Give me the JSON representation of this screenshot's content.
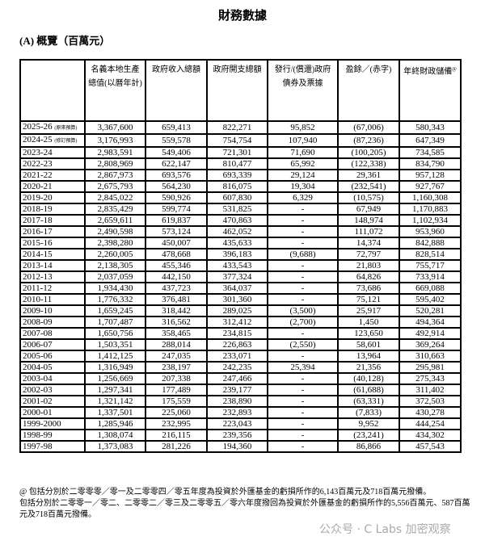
{
  "title": "財務數據",
  "section": "(A) 概覽（百萬元）",
  "headers": [
    "",
    "名義本地生產總值(以曆年計)",
    "政府收入總額",
    "政府開支總額",
    "發行/(償還)政府債券及票據",
    "盈餘／(赤字)",
    "年終財政儲備"
  ],
  "footnote_marker": "@",
  "rows": [
    {
      "year": "2025-26",
      "note": "(原來預算)",
      "v": [
        "3,367,600",
        "659,413",
        "822,271",
        "95,852",
        "(67,006)",
        "580,343"
      ]
    },
    {
      "year": "2024-25",
      "note": "(修訂預算)",
      "v": [
        "3,176,993",
        "559,578",
        "754,754",
        "107,940",
        "(87,236)",
        "647,349"
      ]
    },
    {
      "year": "2023-24",
      "v": [
        "2,983,591",
        "549,406",
        "721,301",
        "71,690",
        "(100,205)",
        "734,585"
      ]
    },
    {
      "year": "2022-23",
      "v": [
        "2,808,969",
        "622,147",
        "810,477",
        "65,992",
        "(122,338)",
        "834,790"
      ]
    },
    {
      "year": "2021-22",
      "v": [
        "2,867,973",
        "693,576",
        "693,339",
        "29,124",
        "29,361",
        "957,128"
      ]
    },
    {
      "year": "2020-21",
      "v": [
        "2,675,793",
        "564,230",
        "816,075",
        "19,304",
        "(232,541)",
        "927,767"
      ]
    },
    {
      "year": "2019-20",
      "v": [
        "2,845,022",
        "590,926",
        "607,830",
        "6,329",
        "(10,575)",
        "1,160,308"
      ]
    },
    {
      "year": "2018-19",
      "v": [
        "2,835,429",
        "599,774",
        "531,825",
        "-",
        "67,949",
        "1,170,883"
      ]
    },
    {
      "year": "2017-18",
      "v": [
        "2,659,611",
        "619,837",
        "470,863",
        "-",
        "148,974",
        "1,102,934"
      ]
    },
    {
      "year": "2016-17",
      "v": [
        "2,490,598",
        "573,124",
        "462,052",
        "-",
        "111,072",
        "953,960"
      ]
    },
    {
      "year": "2015-16",
      "v": [
        "2,398,280",
        "450,007",
        "435,633",
        "-",
        "14,374",
        "842,888"
      ]
    },
    {
      "year": "2014-15",
      "v": [
        "2,260,005",
        "478,668",
        "396,183",
        "(9,688)",
        "72,797",
        "828,514"
      ]
    },
    {
      "year": "2013-14",
      "v": [
        "2,138,305",
        "455,346",
        "433,543",
        "-",
        "21,803",
        "755,717"
      ]
    },
    {
      "year": "2012-13",
      "v": [
        "2,037,059",
        "442,150",
        "377,324",
        "-",
        "64,826",
        "733,914"
      ]
    },
    {
      "year": "2011-12",
      "v": [
        "1,934,430",
        "437,723",
        "364,037",
        "-",
        "73,686",
        "669,088"
      ]
    },
    {
      "year": "2010-11",
      "v": [
        "1,776,332",
        "376,481",
        "301,360",
        "-",
        "75,121",
        "595,402"
      ]
    },
    {
      "year": "2009-10",
      "v": [
        "1,659,245",
        "318,442",
        "289,025",
        "(3,500)",
        "25,917",
        "520,281"
      ]
    },
    {
      "year": "2008-09",
      "v": [
        "1,707,487",
        "316,562",
        "312,412",
        "(2,700)",
        "1,450",
        "494,364"
      ]
    },
    {
      "year": "2007-08",
      "v": [
        "1,650,756",
        "358,465",
        "234,815",
        "-",
        "123,650",
        "492,914"
      ]
    },
    {
      "year": "2006-07",
      "v": [
        "1,503,351",
        "288,014",
        "226,863",
        "(2,550)",
        "58,601",
        "369,264"
      ]
    },
    {
      "year": "2005-06",
      "v": [
        "1,412,125",
        "247,035",
        "233,071",
        "-",
        "13,964",
        "310,663"
      ]
    },
    {
      "year": "2004-05",
      "v": [
        "1,316,949",
        "238,197",
        "242,235",
        "25,394",
        "21,356",
        "295,981"
      ]
    },
    {
      "year": "2003-04",
      "v": [
        "1,256,669",
        "207,338",
        "247,466",
        "-",
        "(40,128)",
        "275,343"
      ]
    },
    {
      "year": "2002-03",
      "v": [
        "1,297,341",
        "177,489",
        "239,177",
        "-",
        "(61,688)",
        "311,402"
      ]
    },
    {
      "year": "2001-02",
      "v": [
        "1,321,142",
        "175,559",
        "238,890",
        "-",
        "(63,331)",
        "372,503"
      ]
    },
    {
      "year": "2000-01",
      "v": [
        "1,337,501",
        "225,060",
        "232,893",
        "-",
        "(7,833)",
        "430,278"
      ]
    },
    {
      "year": "1999-2000",
      "v": [
        "1,285,946",
        "232,995",
        "223,043",
        "-",
        "9,952",
        "444,254"
      ]
    },
    {
      "year": "1998-99",
      "v": [
        "1,308,074",
        "216,115",
        "239,356",
        "-",
        "(23,241)",
        "434,302"
      ]
    },
    {
      "year": "1997-98",
      "v": [
        "1,373,083",
        "281,226",
        "194,360",
        "-",
        "86,866",
        "457,543"
      ]
    }
  ],
  "footnotes": [
    "@  包括分別於二零零零／零一及二零零四／零五年度為投資於外匯基金的虧損所作的6,143百萬元及718百萬元撥備。",
    "包括分別於二零零一／零二、二零零二／零三及二零零五／零六年度撥回為投資於外匯基金的虧損所作的5,556百萬元、587百萬元及718百萬元撥備。"
  ],
  "watermark": "公众号 · C Labs 加密观察"
}
